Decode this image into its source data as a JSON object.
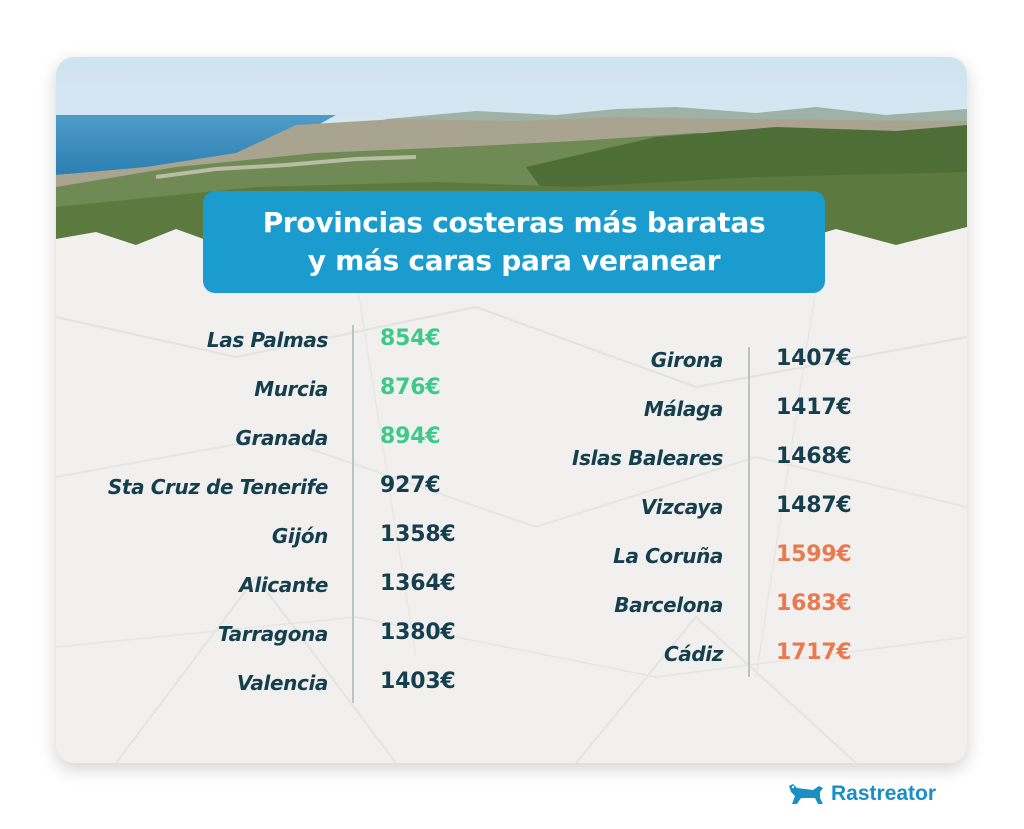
{
  "title": {
    "line1": "Provincias costeras más baratas",
    "line2": "y más caras para veranear"
  },
  "colors": {
    "cheap": "#3ec98a",
    "normal": "#163f4e",
    "expensive": "#e97a4f",
    "title_bg": "#1a9ccf",
    "brand": "#1a8fc4"
  },
  "left_list": [
    {
      "province": "Las Palmas",
      "price": "854€",
      "tier": "cheap"
    },
    {
      "province": "Murcia",
      "price": "876€",
      "tier": "cheap"
    },
    {
      "province": "Granada",
      "price": "894€",
      "tier": "cheap"
    },
    {
      "province": "Sta Cruz de Tenerife",
      "price": "927€",
      "tier": "normal"
    },
    {
      "province": "Gijón",
      "price": "1358€",
      "tier": "normal"
    },
    {
      "province": "Alicante",
      "price": "1364€",
      "tier": "normal"
    },
    {
      "province": "Tarragona",
      "price": "1380€",
      "tier": "normal"
    },
    {
      "province": "Valencia",
      "price": "1403€",
      "tier": "normal"
    }
  ],
  "right_list": [
    {
      "province": "Girona",
      "price": "1407€",
      "tier": "normal"
    },
    {
      "province": "Málaga",
      "price": "1417€",
      "tier": "normal"
    },
    {
      "province": "Islas Baleares",
      "price": "1468€",
      "tier": "normal"
    },
    {
      "province": "Vizcaya",
      "price": "1487€",
      "tier": "normal"
    },
    {
      "province": "La Coruña",
      "price": "1599€",
      "tier": "expensive"
    },
    {
      "province": "Barcelona",
      "price": "1683€",
      "tier": "expensive"
    },
    {
      "province": "Cádiz",
      "price": "1717€",
      "tier": "expensive"
    }
  ],
  "brand": {
    "name": "Rastreator",
    "icon": "dog-icon"
  }
}
